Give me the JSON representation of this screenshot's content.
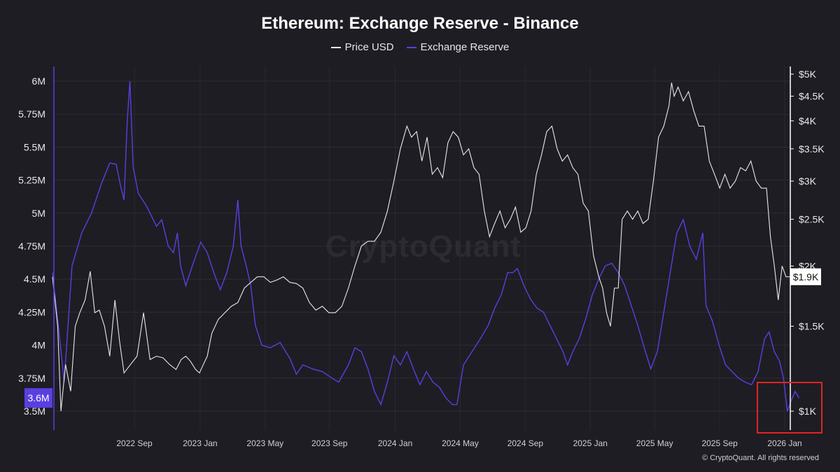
{
  "chart_data": {
    "type": "line",
    "title": "Ethereum: Exchange Reserve - Binance",
    "legend": [
      {
        "label": "Price USD",
        "color": "#e8e8e8"
      },
      {
        "label": "Exchange Reserve",
        "color": "#5a3fe0"
      }
    ],
    "left_axis": {
      "ticks": [
        "6M",
        "5.75M",
        "5.5M",
        "5.25M",
        "5M",
        "4.75M",
        "4.5M",
        "4.25M",
        "4M",
        "3.75M",
        "3.5M"
      ],
      "tick_values": [
        6.0,
        5.75,
        5.5,
        5.25,
        5.0,
        4.75,
        4.5,
        4.25,
        4.0,
        3.75,
        3.5
      ],
      "range": [
        3.5,
        6.0
      ],
      "current_label": "3.6M",
      "current_value": 3.6
    },
    "right_axis": {
      "scale": "log",
      "ticks": [
        "$5K",
        "$4.5K",
        "$4K",
        "$3.5K",
        "$3K",
        "$2.5K",
        "$2K",
        "$1.5K",
        "$1K"
      ],
      "tick_values": [
        5000,
        4500,
        4000,
        3500,
        3000,
        2500,
        2000,
        1500,
        1000
      ],
      "current_label": "$1.9K",
      "current_value": 1900
    },
    "x_axis": {
      "ticks": [
        "2022 Sep",
        "2023 Jan",
        "2023 May",
        "2023 Sep",
        "2024 Jan",
        "2024 May",
        "2024 Sep",
        "2025 Jan",
        "2025 May",
        "2025 Sep",
        "2026 Jan"
      ],
      "tick_t": [
        0.126,
        0.227,
        0.327,
        0.426,
        0.527,
        0.627,
        0.727,
        0.827,
        0.926,
        1.026,
        1.126
      ]
    },
    "series": [
      {
        "name": "Exchange Reserve",
        "unit": "M ETH",
        "points": [
          [
            0.0,
            4.55
          ],
          [
            0.01,
            4.1
          ],
          [
            0.018,
            3.72
          ],
          [
            0.03,
            4.6
          ],
          [
            0.045,
            4.85
          ],
          [
            0.06,
            5.0
          ],
          [
            0.075,
            5.22
          ],
          [
            0.088,
            5.38
          ],
          [
            0.098,
            5.37
          ],
          [
            0.105,
            5.2
          ],
          [
            0.11,
            5.1
          ],
          [
            0.115,
            5.7
          ],
          [
            0.119,
            6.0
          ],
          [
            0.124,
            5.35
          ],
          [
            0.132,
            5.15
          ],
          [
            0.145,
            5.05
          ],
          [
            0.16,
            4.9
          ],
          [
            0.168,
            4.95
          ],
          [
            0.178,
            4.75
          ],
          [
            0.186,
            4.7
          ],
          [
            0.192,
            4.85
          ],
          [
            0.197,
            4.6
          ],
          [
            0.205,
            4.45
          ],
          [
            0.215,
            4.6
          ],
          [
            0.228,
            4.78
          ],
          [
            0.238,
            4.7
          ],
          [
            0.248,
            4.55
          ],
          [
            0.258,
            4.42
          ],
          [
            0.268,
            4.55
          ],
          [
            0.278,
            4.75
          ],
          [
            0.285,
            5.1
          ],
          [
            0.29,
            4.75
          ],
          [
            0.298,
            4.6
          ],
          [
            0.305,
            4.45
          ],
          [
            0.312,
            4.15
          ],
          [
            0.322,
            4.0
          ],
          [
            0.335,
            3.98
          ],
          [
            0.35,
            4.02
          ],
          [
            0.365,
            3.9
          ],
          [
            0.375,
            3.78
          ],
          [
            0.385,
            3.85
          ],
          [
            0.4,
            3.82
          ],
          [
            0.415,
            3.8
          ],
          [
            0.43,
            3.75
          ],
          [
            0.44,
            3.72
          ],
          [
            0.455,
            3.85
          ],
          [
            0.465,
            3.98
          ],
          [
            0.475,
            3.95
          ],
          [
            0.485,
            3.82
          ],
          [
            0.495,
            3.65
          ],
          [
            0.505,
            3.55
          ],
          [
            0.515,
            3.72
          ],
          [
            0.525,
            3.92
          ],
          [
            0.535,
            3.85
          ],
          [
            0.545,
            3.95
          ],
          [
            0.555,
            3.82
          ],
          [
            0.565,
            3.7
          ],
          [
            0.575,
            3.8
          ],
          [
            0.585,
            3.72
          ],
          [
            0.595,
            3.68
          ],
          [
            0.605,
            3.6
          ],
          [
            0.615,
            3.55
          ],
          [
            0.622,
            3.55
          ],
          [
            0.632,
            3.85
          ],
          [
            0.645,
            3.95
          ],
          [
            0.658,
            4.05
          ],
          [
            0.67,
            4.15
          ],
          [
            0.68,
            4.28
          ],
          [
            0.69,
            4.38
          ],
          [
            0.7,
            4.55
          ],
          [
            0.708,
            4.55
          ],
          [
            0.715,
            4.58
          ],
          [
            0.725,
            4.45
          ],
          [
            0.735,
            4.35
          ],
          [
            0.745,
            4.28
          ],
          [
            0.755,
            4.25
          ],
          [
            0.765,
            4.15
          ],
          [
            0.775,
            4.05
          ],
          [
            0.785,
            3.95
          ],
          [
            0.792,
            3.85
          ],
          [
            0.8,
            3.95
          ],
          [
            0.81,
            4.05
          ],
          [
            0.82,
            4.2
          ],
          [
            0.83,
            4.38
          ],
          [
            0.84,
            4.5
          ],
          [
            0.85,
            4.6
          ],
          [
            0.86,
            4.62
          ],
          [
            0.87,
            4.55
          ],
          [
            0.88,
            4.45
          ],
          [
            0.89,
            4.3
          ],
          [
            0.9,
            4.15
          ],
          [
            0.91,
            3.98
          ],
          [
            0.92,
            3.82
          ],
          [
            0.93,
            3.95
          ],
          [
            0.94,
            4.25
          ],
          [
            0.95,
            4.55
          ],
          [
            0.96,
            4.85
          ],
          [
            0.97,
            4.95
          ],
          [
            0.98,
            4.75
          ],
          [
            0.99,
            4.65
          ],
          [
            1.0,
            4.85
          ],
          [
            1.005,
            4.3
          ],
          [
            1.015,
            4.18
          ],
          [
            1.025,
            4.0
          ],
          [
            1.035,
            3.85
          ],
          [
            1.045,
            3.8
          ],
          [
            1.055,
            3.75
          ],
          [
            1.065,
            3.72
          ],
          [
            1.075,
            3.7
          ],
          [
            1.085,
            3.8
          ],
          [
            1.095,
            4.05
          ],
          [
            1.102,
            4.1
          ],
          [
            1.11,
            3.95
          ],
          [
            1.118,
            3.88
          ],
          [
            1.124,
            3.75
          ],
          [
            1.13,
            3.5
          ],
          [
            1.136,
            3.58
          ],
          [
            1.142,
            3.65
          ],
          [
            1.148,
            3.6
          ]
        ]
      },
      {
        "name": "Price USD",
        "unit": "USD",
        "points": [
          [
            0.0,
            1900
          ],
          [
            0.008,
            1500
          ],
          [
            0.013,
            1000
          ],
          [
            0.02,
            1250
          ],
          [
            0.028,
            1100
          ],
          [
            0.035,
            1500
          ],
          [
            0.042,
            1600
          ],
          [
            0.05,
            1700
          ],
          [
            0.058,
            1950
          ],
          [
            0.065,
            1600
          ],
          [
            0.072,
            1620
          ],
          [
            0.08,
            1500
          ],
          [
            0.088,
            1300
          ],
          [
            0.096,
            1700
          ],
          [
            0.103,
            1400
          ],
          [
            0.11,
            1200
          ],
          [
            0.12,
            1250
          ],
          [
            0.13,
            1300
          ],
          [
            0.14,
            1600
          ],
          [
            0.15,
            1280
          ],
          [
            0.16,
            1300
          ],
          [
            0.17,
            1290
          ],
          [
            0.18,
            1250
          ],
          [
            0.19,
            1220
          ],
          [
            0.198,
            1280
          ],
          [
            0.205,
            1300
          ],
          [
            0.212,
            1270
          ],
          [
            0.22,
            1220
          ],
          [
            0.226,
            1200
          ],
          [
            0.232,
            1250
          ],
          [
            0.238,
            1300
          ],
          [
            0.245,
            1450
          ],
          [
            0.255,
            1550
          ],
          [
            0.265,
            1600
          ],
          [
            0.275,
            1650
          ],
          [
            0.285,
            1680
          ],
          [
            0.295,
            1800
          ],
          [
            0.305,
            1850
          ],
          [
            0.315,
            1900
          ],
          [
            0.325,
            1900
          ],
          [
            0.335,
            1850
          ],
          [
            0.345,
            1870
          ],
          [
            0.355,
            1900
          ],
          [
            0.365,
            1850
          ],
          [
            0.375,
            1840
          ],
          [
            0.385,
            1800
          ],
          [
            0.395,
            1680
          ],
          [
            0.405,
            1620
          ],
          [
            0.415,
            1650
          ],
          [
            0.425,
            1600
          ],
          [
            0.435,
            1600
          ],
          [
            0.445,
            1650
          ],
          [
            0.455,
            1800
          ],
          [
            0.465,
            2000
          ],
          [
            0.475,
            2200
          ],
          [
            0.485,
            2250
          ],
          [
            0.495,
            2250
          ],
          [
            0.505,
            2350
          ],
          [
            0.515,
            2600
          ],
          [
            0.525,
            3000
          ],
          [
            0.535,
            3500
          ],
          [
            0.545,
            3900
          ],
          [
            0.552,
            3700
          ],
          [
            0.56,
            3800
          ],
          [
            0.568,
            3300
          ],
          [
            0.576,
            3700
          ],
          [
            0.584,
            3100
          ],
          [
            0.592,
            3200
          ],
          [
            0.6,
            3050
          ],
          [
            0.608,
            3600
          ],
          [
            0.616,
            3800
          ],
          [
            0.624,
            3700
          ],
          [
            0.632,
            3400
          ],
          [
            0.64,
            3500
          ],
          [
            0.648,
            3200
          ],
          [
            0.656,
            3100
          ],
          [
            0.664,
            2600
          ],
          [
            0.672,
            2300
          ],
          [
            0.68,
            2450
          ],
          [
            0.688,
            2600
          ],
          [
            0.696,
            2400
          ],
          [
            0.704,
            2500
          ],
          [
            0.712,
            2650
          ],
          [
            0.72,
            2350
          ],
          [
            0.728,
            2400
          ],
          [
            0.736,
            2600
          ],
          [
            0.744,
            3100
          ],
          [
            0.752,
            3400
          ],
          [
            0.76,
            3800
          ],
          [
            0.768,
            3900
          ],
          [
            0.776,
            3500
          ],
          [
            0.784,
            3300
          ],
          [
            0.792,
            3400
          ],
          [
            0.8,
            3200
          ],
          [
            0.808,
            3100
          ],
          [
            0.816,
            2700
          ],
          [
            0.824,
            2600
          ],
          [
            0.832,
            2100
          ],
          [
            0.84,
            1900
          ],
          [
            0.846,
            1800
          ],
          [
            0.852,
            1600
          ],
          [
            0.858,
            1500
          ],
          [
            0.864,
            1800
          ],
          [
            0.87,
            1800
          ],
          [
            0.876,
            2500
          ],
          [
            0.884,
            2600
          ],
          [
            0.892,
            2500
          ],
          [
            0.9,
            2600
          ],
          [
            0.908,
            2450
          ],
          [
            0.916,
            2500
          ],
          [
            0.924,
            3000
          ],
          [
            0.932,
            3700
          ],
          [
            0.94,
            3900
          ],
          [
            0.948,
            4300
          ],
          [
            0.952,
            4800
          ],
          [
            0.956,
            4500
          ],
          [
            0.962,
            4700
          ],
          [
            0.97,
            4400
          ],
          [
            0.978,
            4600
          ],
          [
            0.986,
            4200
          ],
          [
            0.994,
            3900
          ],
          [
            1.002,
            3900
          ],
          [
            1.01,
            3300
          ],
          [
            1.018,
            3100
          ],
          [
            1.026,
            2900
          ],
          [
            1.034,
            3100
          ],
          [
            1.042,
            2900
          ],
          [
            1.05,
            3000
          ],
          [
            1.058,
            3200
          ],
          [
            1.066,
            3150
          ],
          [
            1.074,
            3300
          ],
          [
            1.082,
            3000
          ],
          [
            1.09,
            2900
          ],
          [
            1.098,
            2900
          ],
          [
            1.104,
            2300
          ],
          [
            1.11,
            2000
          ],
          [
            1.116,
            1700
          ],
          [
            1.122,
            2000
          ],
          [
            1.128,
            1900
          ],
          [
            1.134,
            1900
          ]
        ]
      }
    ]
  },
  "watermark": "CryptoQuant",
  "copyright": "© CryptoQuant. All rights reserved",
  "colors": {
    "background": "#1e1d23",
    "reserve": "#5a3fe0",
    "price": "#e8e8e8",
    "highlight_box": "#e02424",
    "grid": "#2e2d34"
  }
}
